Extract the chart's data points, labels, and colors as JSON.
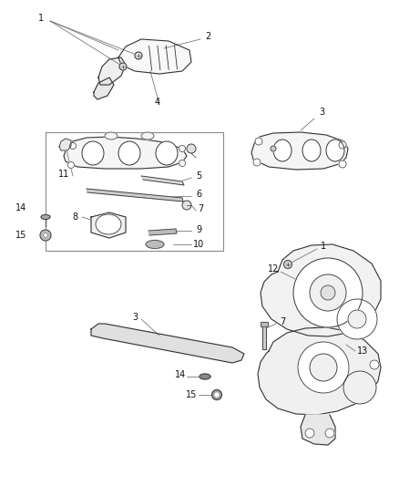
{
  "bg_color": "#f5f5f5",
  "fig_width": 4.39,
  "fig_height": 5.33,
  "line_color": "#333333",
  "leader_color": "#777777",
  "fill_light": "#f0f0f0",
  "fill_mid": "#e0e0e0",
  "fill_dark": "#cccccc"
}
